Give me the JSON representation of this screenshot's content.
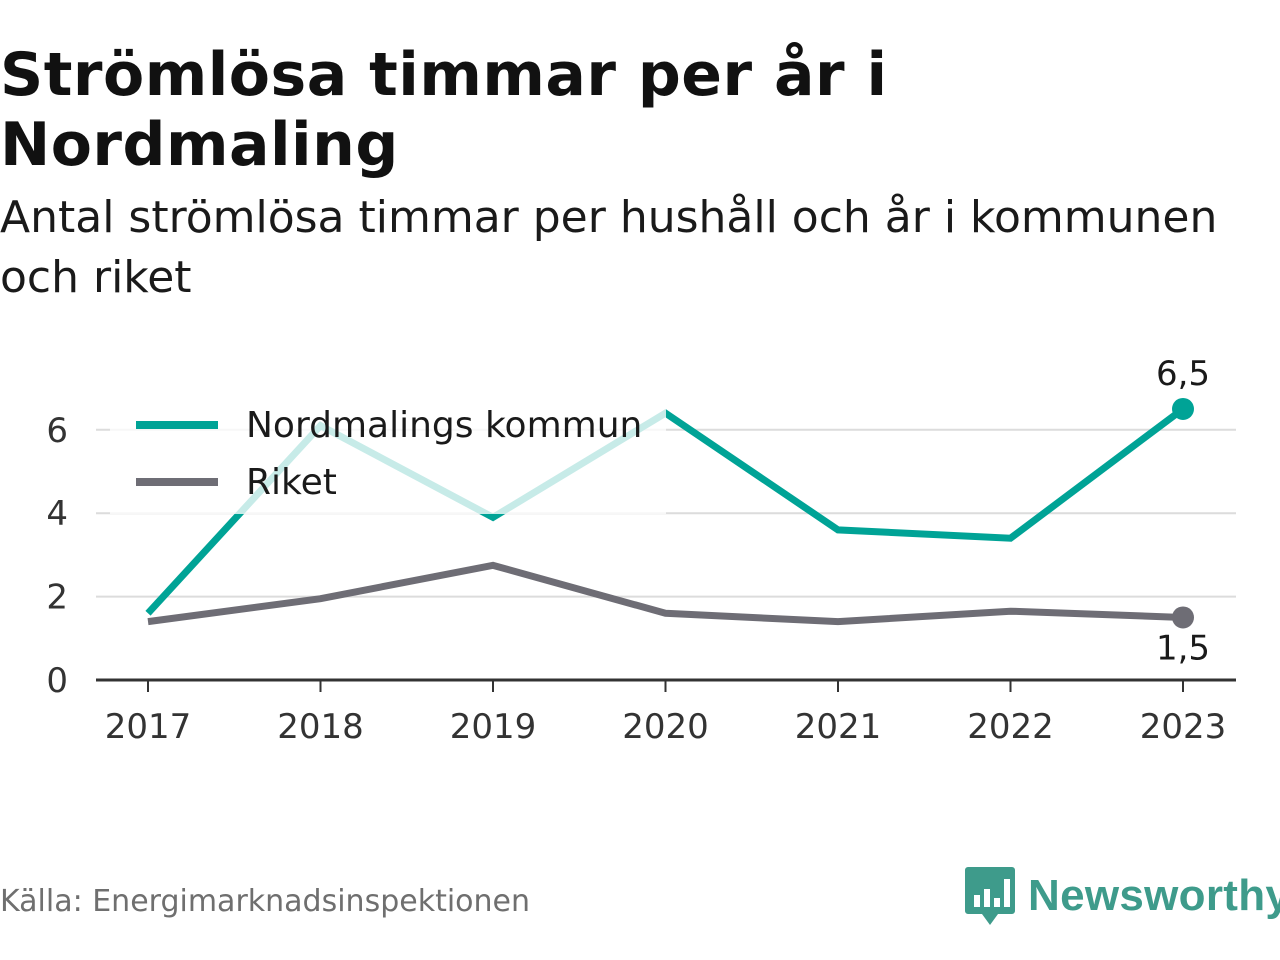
{
  "header": {
    "title": "Strömlösa timmar per år i Nordmaling",
    "subtitle": "Antal strömlösa timmar per hushåll och år i kommunen och riket"
  },
  "footer": {
    "source": "Källa: Energimarknadsinspektionen",
    "brand": "Newsworthy",
    "brand_icon": "bar-chart-speech-bubble-icon",
    "brand_color": "#3e9b8b"
  },
  "chart_data": {
    "type": "line",
    "title": "Strömlösa timmar per år i Nordmaling",
    "subtitle": "Antal strömlösa timmar per hushåll och år i kommunen och riket",
    "xlabel": "",
    "ylabel": "",
    "x": [
      "2017",
      "2018",
      "2019",
      "2020",
      "2021",
      "2022",
      "2023"
    ],
    "yticks": [
      0,
      2,
      4,
      6
    ],
    "ylim": [
      0,
      6.5
    ],
    "grid": true,
    "legend_position": "top-left",
    "series": [
      {
        "name": "Nordmalings kommun",
        "color": "#00a396",
        "values": [
          1.6,
          6.1,
          3.9,
          6.4,
          3.6,
          3.4,
          6.5
        ],
        "end_label": "6,5"
      },
      {
        "name": "Riket",
        "color": "#6e6d75",
        "values": [
          1.4,
          1.95,
          2.75,
          1.6,
          1.4,
          1.65,
          1.5
        ],
        "end_label": "1,5"
      }
    ]
  }
}
